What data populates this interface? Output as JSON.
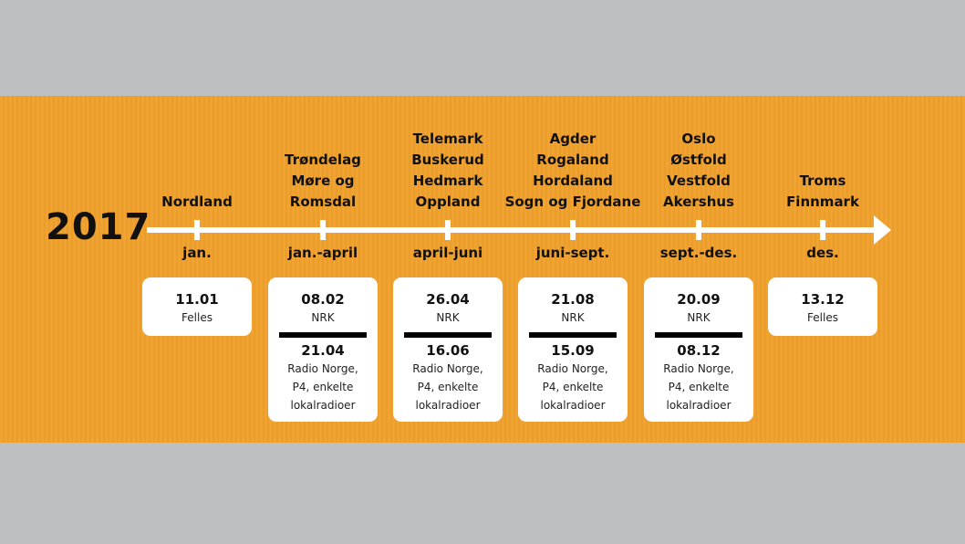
{
  "year": "2017",
  "milestones": [
    {
      "regions": [
        "Nordland"
      ],
      "period": "jan.",
      "card": {
        "date1": "11.01",
        "label1": "Felles",
        "date2": "",
        "label2": []
      }
    },
    {
      "regions": [
        "Trøndelag",
        "Møre og",
        "Romsdal"
      ],
      "period": "jan.-april",
      "card": {
        "date1": "08.02",
        "label1": "NRK",
        "date2": "21.04",
        "label2": [
          "Radio Norge,",
          "P4, enkelte",
          "lokalradioer"
        ]
      }
    },
    {
      "regions": [
        "Telemark",
        "Buskerud",
        "Hedmark",
        "Oppland"
      ],
      "period": "april-juni",
      "card": {
        "date1": "26.04",
        "label1": "NRK",
        "date2": "16.06",
        "label2": [
          "Radio Norge,",
          "P4, enkelte",
          "lokalradioer"
        ]
      }
    },
    {
      "regions": [
        "Agder",
        "Rogaland",
        "Hordaland",
        "Sogn og Fjordane"
      ],
      "period": "juni-sept.",
      "card": {
        "date1": "21.08",
        "label1": "NRK",
        "date2": "15.09",
        "label2": [
          "Radio Norge,",
          "P4, enkelte",
          "lokalradioer"
        ]
      }
    },
    {
      "regions": [
        "Oslo",
        "Østfold",
        "Vestfold",
        "Akershus"
      ],
      "period": "sept.-des.",
      "card": {
        "date1": "20.09",
        "label1": "NRK",
        "date2": "08.12",
        "label2": [
          "Radio Norge,",
          "P4, enkelte",
          "lokalradioer"
        ]
      }
    },
    {
      "regions": [
        "Troms",
        "Finnmark"
      ],
      "period": "des.",
      "card": {
        "date1": "13.12",
        "label1": "Felles",
        "date2": "",
        "label2": []
      }
    }
  ]
}
